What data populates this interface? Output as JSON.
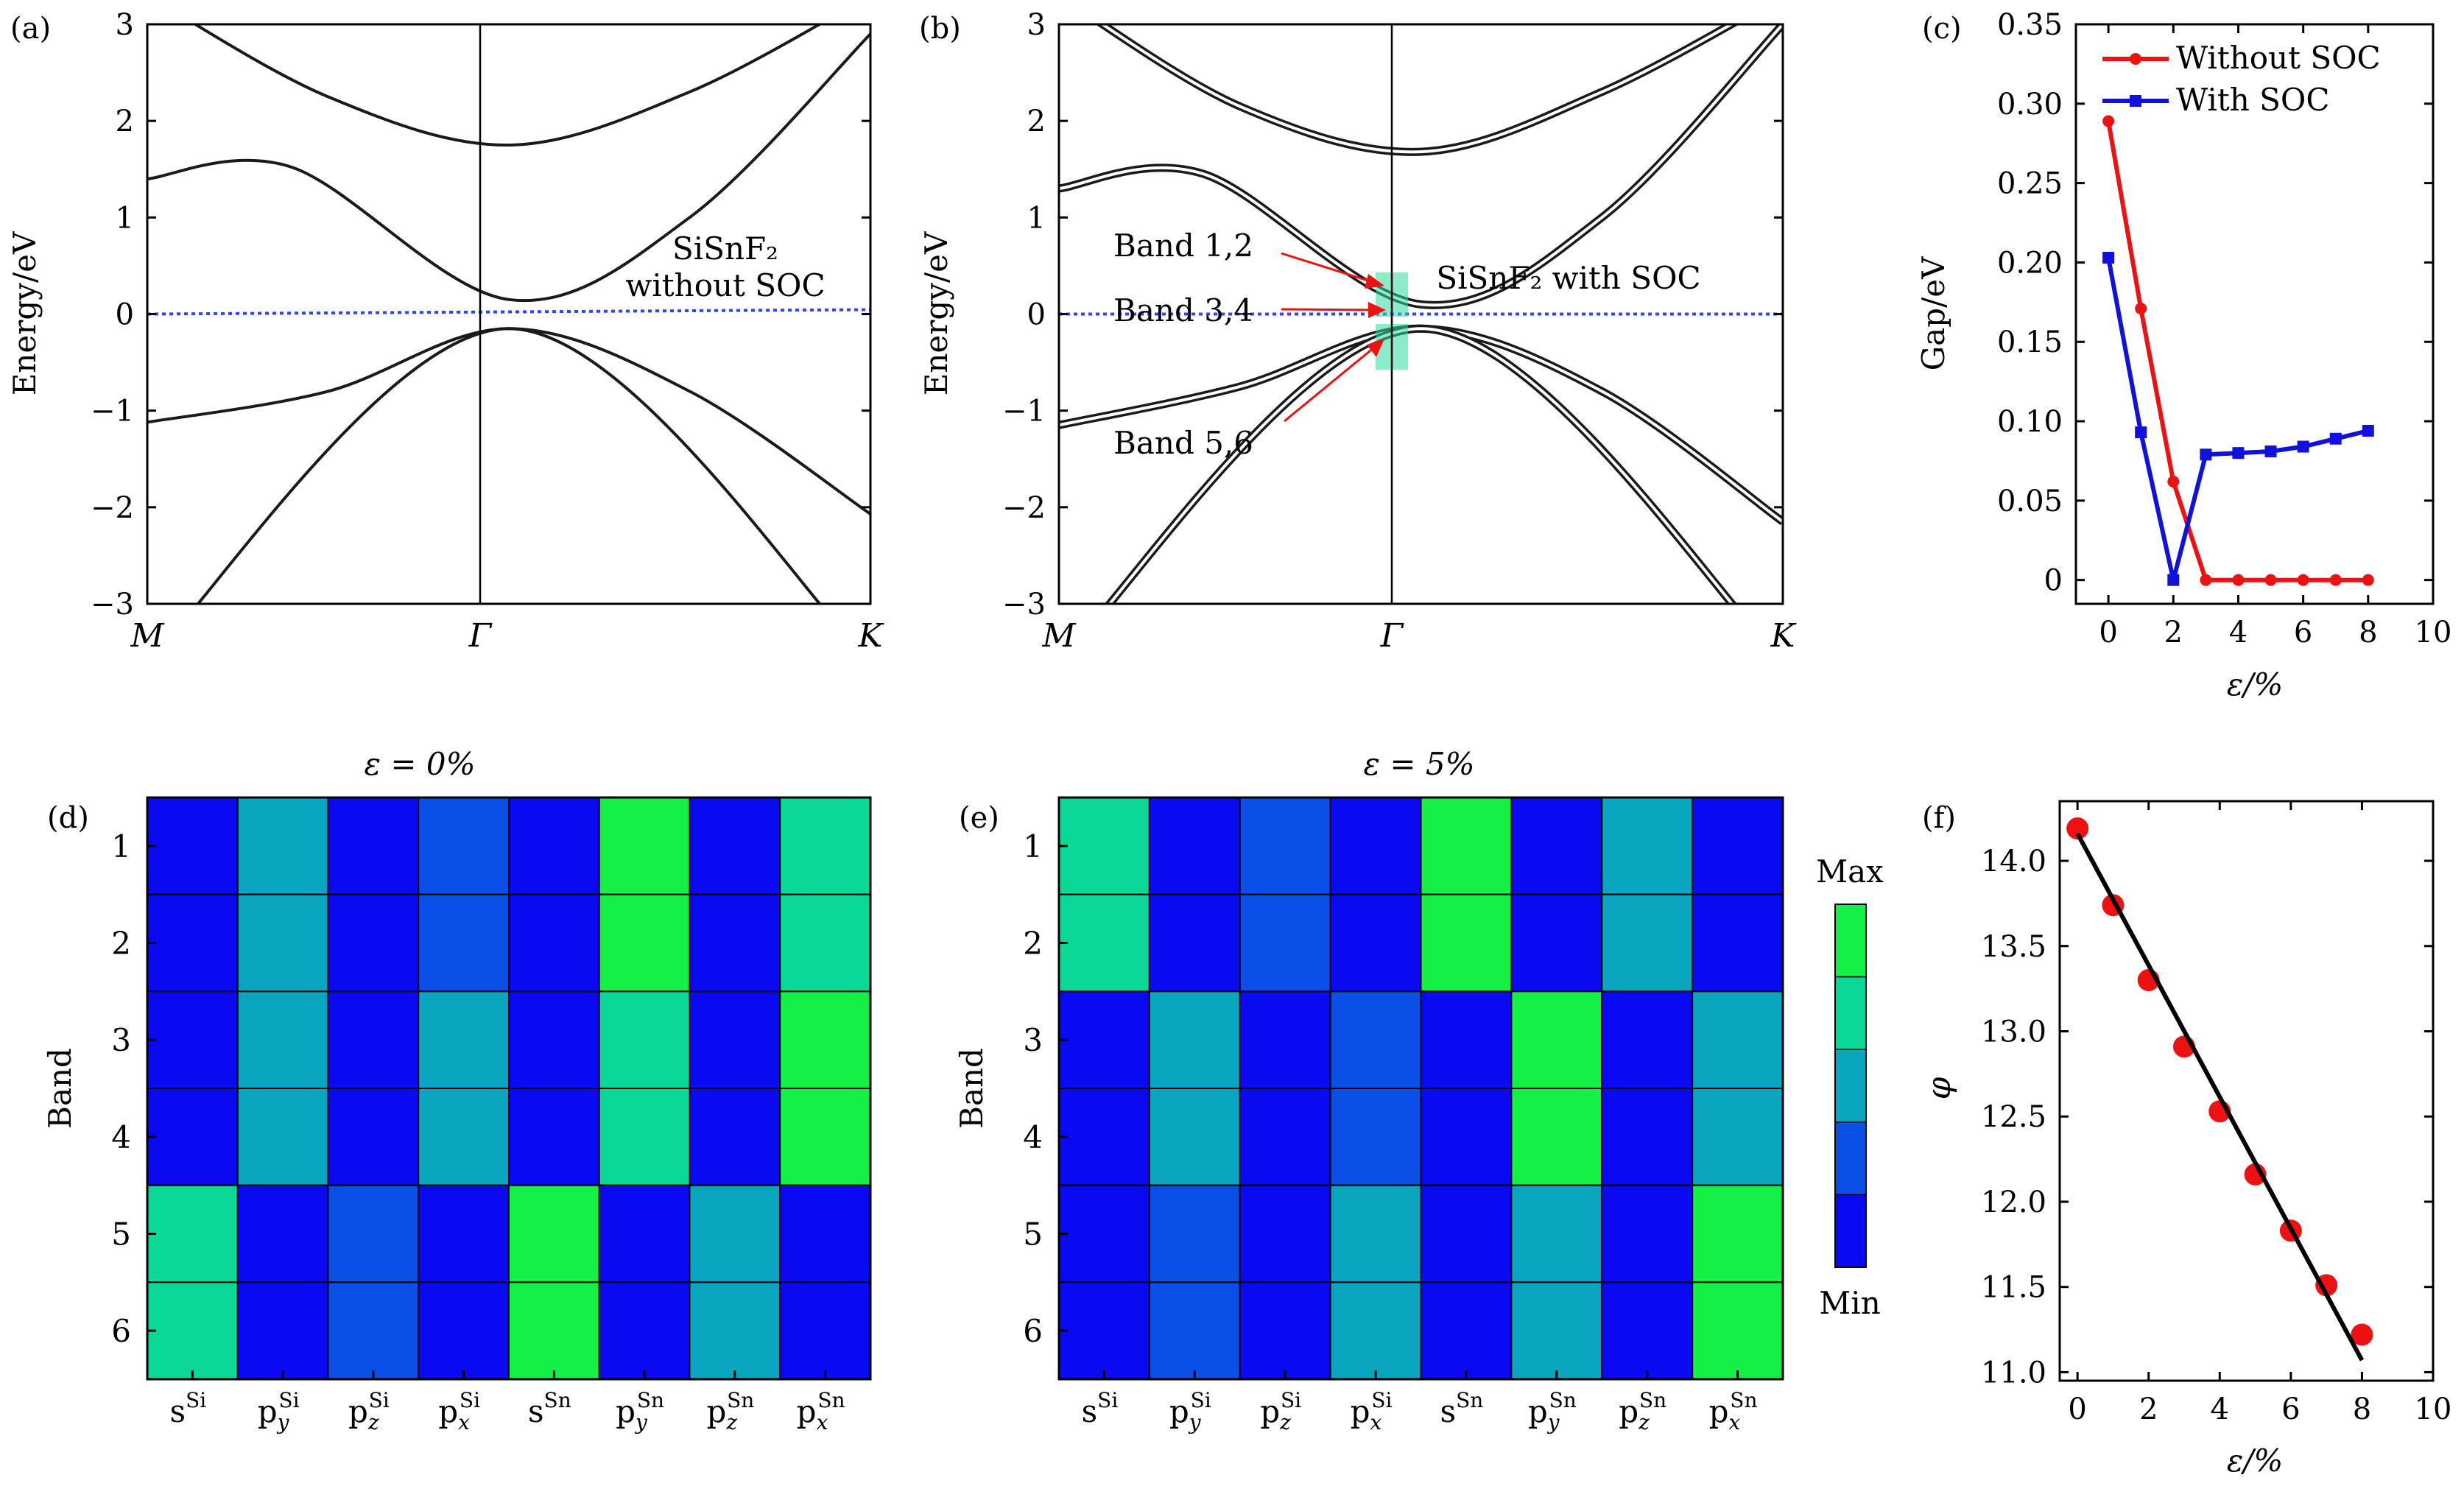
{
  "chart_data": [
    {
      "panel": "(a)",
      "type": "line",
      "ylabel": "Energy/eV",
      "ylim": [
        -3,
        3
      ],
      "yticks": [
        "3",
        "2",
        "1",
        "0",
        "−1",
        "−2",
        "−3"
      ],
      "k_labels": [
        "M",
        "Γ",
        "K"
      ],
      "annotation_lines": [
        "SiSnF₂",
        "without SOC"
      ],
      "grid": false,
      "fermi_level": 0,
      "bands": [
        {
          "k": [
            0,
            0.25,
            0.5,
            0.75,
            1
          ],
          "E": [
            -1.12,
            -0.8,
            -0.15,
            -0.8,
            -2.07
          ]
        },
        {
          "k": [
            0,
            0.5,
            1
          ],
          "E": [
            -3.6,
            -0.15,
            -3.6
          ]
        },
        {
          "k": [
            0,
            0.2,
            0.5,
            0.75,
            1
          ],
          "E": [
            1.4,
            1.52,
            0.15,
            1.0,
            2.9
          ]
        },
        {
          "k": [
            0,
            0.25,
            0.5,
            0.75,
            1
          ],
          "E": [
            3.3,
            2.25,
            1.75,
            2.3,
            3.3
          ]
        }
      ]
    },
    {
      "panel": "(b)",
      "type": "line",
      "ylabel": "Energy/eV",
      "ylim": [
        -3,
        3
      ],
      "yticks": [
        "3",
        "2",
        "1",
        "0",
        "−1",
        "−2",
        "−3"
      ],
      "k_labels": [
        "M",
        "Γ",
        "K"
      ],
      "annotation_lines": [
        "SiSnF₂ with SOC"
      ],
      "callouts": [
        "Band 1,2",
        "Band 3,4",
        "Band 5,6"
      ],
      "grid": false,
      "fermi_level": 0,
      "bands": [
        {
          "k": [
            0,
            0.25,
            0.5,
            0.75,
            1
          ],
          "E": [
            -1.15,
            -0.75,
            -0.15,
            -0.8,
            -2.15
          ]
        },
        {
          "k": [
            0,
            0.5,
            1
          ],
          "E": [
            -3.6,
            -0.15,
            -3.6
          ]
        },
        {
          "k": [
            0,
            0.2,
            0.5,
            0.75,
            1
          ],
          "E": [
            1.3,
            1.45,
            0.1,
            1.0,
            3.0
          ]
        },
        {
          "k": [
            0,
            0.25,
            0.5,
            0.75,
            1
          ],
          "E": [
            3.3,
            2.15,
            1.68,
            2.3,
            3.3
          ]
        }
      ]
    },
    {
      "panel": "(c)",
      "type": "line",
      "xlabel": "ε/%",
      "ylabel": "Gap/eV",
      "xlim": [
        -1,
        10
      ],
      "ylim": [
        -0.015,
        0.35
      ],
      "xticks": [
        "0",
        "2",
        "4",
        "6",
        "8",
        "10"
      ],
      "yticks": [
        "0.35",
        "0.30",
        "0.25",
        "0.20",
        "0.15",
        "0.10",
        "0.05",
        "0"
      ],
      "grid": false,
      "legend_position": "top-right",
      "x": [
        0,
        1,
        2,
        3,
        4,
        5,
        6,
        7,
        8
      ],
      "series": [
        {
          "name": "Without SOC",
          "color": "#ee1111",
          "values": [
            0.289,
            0.171,
            0.062,
            0.0,
            0.0,
            0.0,
            0.0,
            0.0,
            0.0
          ]
        },
        {
          "name": "With SOC",
          "color": "#1111dd",
          "values": [
            0.203,
            0.093,
            0.0,
            0.079,
            0.08,
            0.081,
            0.084,
            0.089,
            0.094
          ]
        }
      ]
    },
    {
      "panel": "(d)",
      "type": "heatmap",
      "title": "ε = 0%",
      "ylabel": "Band",
      "rows": [
        "1",
        "2",
        "3",
        "4",
        "5",
        "6"
      ],
      "columns": [
        [
          "s",
          "Si"
        ],
        [
          "p",
          "y",
          "Si"
        ],
        [
          "p",
          "z",
          "Si"
        ],
        [
          "p",
          "x",
          "Si"
        ],
        [
          "s",
          "Sn"
        ],
        [
          "p",
          "y",
          "Sn"
        ],
        [
          "p",
          "z",
          "Sn"
        ],
        [
          "p",
          "x",
          "Sn"
        ]
      ],
      "values": [
        [
          0,
          2,
          0,
          1,
          0,
          4,
          0,
          3
        ],
        [
          0,
          2,
          0,
          1,
          0,
          4,
          0,
          3
        ],
        [
          0,
          2,
          0,
          2,
          0,
          3,
          0,
          4
        ],
        [
          0,
          2,
          0,
          2,
          0,
          3,
          0,
          4
        ],
        [
          3,
          0,
          1,
          0,
          4,
          0,
          2,
          0
        ],
        [
          3,
          0,
          1,
          0,
          4,
          0,
          2,
          0
        ]
      ]
    },
    {
      "panel": "(e)",
      "type": "heatmap",
      "title": "ε = 5%",
      "ylabel": "Band",
      "rows": [
        "1",
        "2",
        "3",
        "4",
        "5",
        "6"
      ],
      "columns": [
        [
          "s",
          "Si"
        ],
        [
          "p",
          "y",
          "Si"
        ],
        [
          "p",
          "z",
          "Si"
        ],
        [
          "p",
          "x",
          "Si"
        ],
        [
          "s",
          "Sn"
        ],
        [
          "p",
          "y",
          "Sn"
        ],
        [
          "p",
          "z",
          "Sn"
        ],
        [
          "p",
          "x",
          "Sn"
        ]
      ],
      "values": [
        [
          3,
          0,
          1,
          0,
          4,
          0,
          2,
          0
        ],
        [
          3,
          0,
          1,
          0,
          4,
          0,
          2,
          0
        ],
        [
          0,
          2,
          0,
          1,
          0,
          4,
          0,
          2
        ],
        [
          0,
          2,
          0,
          1,
          0,
          4,
          0,
          2
        ],
        [
          0,
          1,
          0,
          2,
          0,
          2,
          0,
          4
        ],
        [
          0,
          1,
          0,
          2,
          0,
          2,
          0,
          4
        ]
      ]
    },
    {
      "panel": "(f)",
      "type": "scatter",
      "xlabel": "ε/%",
      "ylabel": "φ",
      "xlim": [
        -0.5,
        10
      ],
      "ylim": [
        10.95,
        14.35
      ],
      "xticks": [
        "0",
        "2",
        "4",
        "6",
        "8",
        "10"
      ],
      "yticks": [
        "14.0",
        "13.5",
        "13.0",
        "12.5",
        "12.0",
        "11.5",
        "11.0"
      ],
      "grid": false,
      "x": [
        0,
        1,
        2,
        3,
        4,
        5,
        6,
        7,
        8
      ],
      "values": [
        14.19,
        13.74,
        13.3,
        12.91,
        12.53,
        12.16,
        11.83,
        11.51,
        11.22
      ],
      "fit_line": {
        "x": [
          0,
          8
        ],
        "y": [
          14.16,
          11.07
        ]
      }
    }
  ],
  "colorbar": {
    "max_label": "Max",
    "min_label": "Min",
    "colors": [
      "#0a0af2",
      "#0a50e6",
      "#0aa6c0",
      "#0ad896",
      "#14f046"
    ]
  },
  "colors": {
    "curve": "#1a1a1a",
    "fermi": "#3344ee",
    "callout": "#ee1111",
    "highlight": "#30d8a0",
    "scatter": "#ee1111"
  }
}
